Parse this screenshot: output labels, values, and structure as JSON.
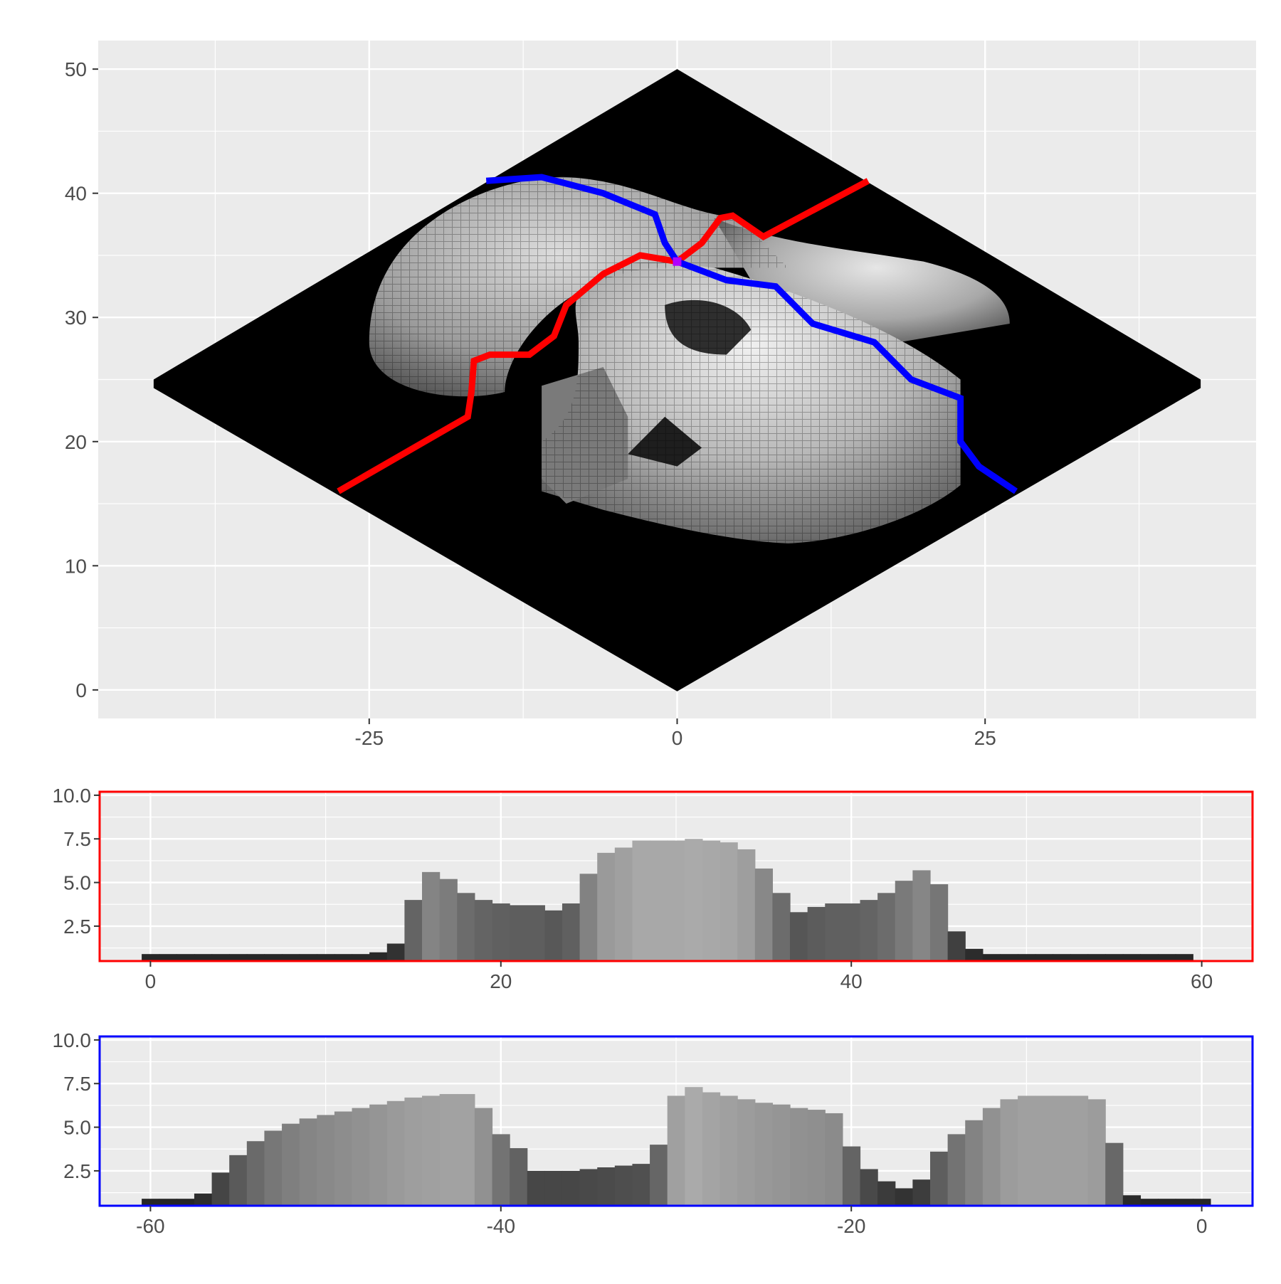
{
  "chart_data": [
    {
      "type": "voxel-isometric",
      "xlim": [
        -47,
        47
      ],
      "ylim": [
        -2.3,
        52.3
      ],
      "x_ticks": [
        -25,
        0,
        25
      ],
      "x_tick_labels": [
        "-25",
        "0",
        "25"
      ],
      "y_ticks": [
        0,
        10,
        20,
        30,
        40,
        50
      ],
      "y_tick_labels": [
        "0",
        "10",
        "20",
        "30",
        "40",
        "50"
      ],
      "grid": true,
      "background": "#ebebeb",
      "surface_color": "#000000",
      "highlight_colors": {
        "row_slice": "#ff0000",
        "column_slice": "#0000ff",
        "intersection": "#b000ff"
      },
      "title": "",
      "xlabel": "",
      "ylabel": ""
    },
    {
      "type": "bar",
      "border_color": "#ff0000",
      "x_start": 0,
      "x_step": 1,
      "values": [
        0.9,
        0.9,
        0.9,
        0.9,
        0.9,
        0.9,
        0.9,
        0.9,
        0.9,
        0.9,
        0.9,
        0.9,
        0.9,
        1.0,
        1.5,
        4.0,
        5.6,
        5.2,
        4.4,
        4.0,
        3.8,
        3.7,
        3.7,
        3.4,
        3.8,
        5.5,
        6.7,
        7.0,
        7.4,
        7.4,
        7.4,
        7.5,
        7.4,
        7.3,
        6.9,
        5.8,
        4.4,
        3.3,
        3.6,
        3.8,
        3.8,
        4.0,
        4.4,
        5.1,
        5.7,
        4.9,
        2.2,
        1.2,
        0.9,
        0.9,
        0.9,
        0.9,
        0.9,
        0.9,
        0.9,
        0.9,
        0.9,
        0.9,
        0.9,
        0.9
      ],
      "xlim": [
        -2.9,
        62.9
      ],
      "ylim": [
        0.5,
        10.2
      ],
      "x_ticks": [
        0,
        20,
        40,
        60
      ],
      "x_tick_labels": [
        "0",
        "20",
        "40",
        "60"
      ],
      "y_ticks": [
        2.5,
        5,
        7.5,
        10
      ],
      "y_tick_labels": [
        "2.5",
        "5.0",
        "7.5",
        "10.0"
      ],
      "grid": true,
      "title": "",
      "xlabel": "",
      "ylabel": ""
    },
    {
      "type": "bar",
      "border_color": "#0000ff",
      "x_start": -60,
      "x_step": 1,
      "values": [
        0.9,
        0.9,
        0.9,
        1.2,
        2.4,
        3.4,
        4.2,
        4.8,
        5.2,
        5.5,
        5.7,
        5.9,
        6.1,
        6.3,
        6.5,
        6.7,
        6.8,
        6.9,
        6.9,
        6.1,
        4.6,
        3.8,
        2.5,
        2.5,
        2.5,
        2.6,
        2.7,
        2.8,
        2.9,
        4.0,
        6.8,
        7.3,
        7.0,
        6.8,
        6.6,
        6.4,
        6.3,
        6.1,
        6.0,
        5.8,
        3.9,
        2.6,
        1.9,
        1.5,
        2.0,
        3.6,
        4.6,
        5.4,
        6.1,
        6.6,
        6.8,
        6.8,
        6.8,
        6.8,
        6.6,
        4.1,
        1.1,
        0.9,
        0.9,
        0.9,
        0.9
      ],
      "xlim": [
        -62.9,
        2.9
      ],
      "ylim": [
        0.5,
        10.2
      ],
      "x_ticks": [
        -60,
        -40,
        -20,
        0
      ],
      "x_tick_labels": [
        "-60",
        "-40",
        "-20",
        "0"
      ],
      "y_ticks": [
        2.5,
        5,
        7.5,
        10
      ],
      "y_tick_labels": [
        "2.5",
        "5.0",
        "7.5",
        "10.0"
      ],
      "grid": true,
      "title": "",
      "xlabel": "",
      "ylabel": ""
    }
  ]
}
